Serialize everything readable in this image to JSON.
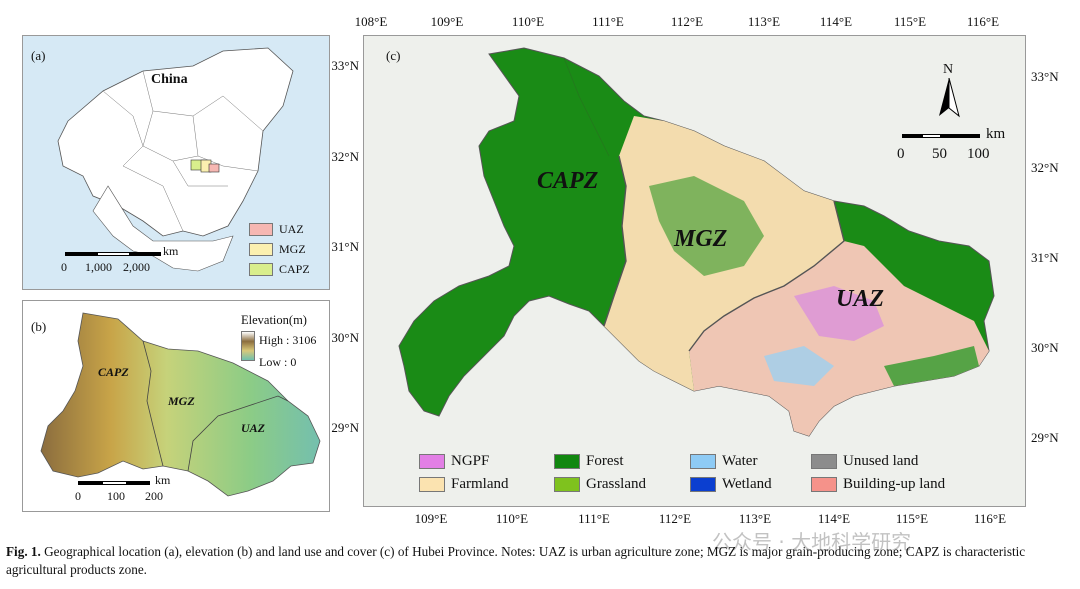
{
  "panel_a": {
    "label": "(a)",
    "country": "China",
    "legend": [
      {
        "name": "UAZ",
        "color": "#f6b7b2"
      },
      {
        "name": "MGZ",
        "color": "#fbf0b0"
      },
      {
        "name": "CAPZ",
        "color": "#d9ee8c"
      }
    ],
    "scale": {
      "unit": "km",
      "ticks": [
        "0",
        "1,000",
        "2,000"
      ]
    }
  },
  "panel_b": {
    "label": "(b)",
    "legend_title": "Elevation(m)",
    "high": "High : 3106",
    "low": "Low : 0",
    "zones": [
      "CAPZ",
      "MGZ",
      "UAZ"
    ],
    "scale": {
      "unit": "km",
      "ticks": [
        "0",
        "100",
        "200"
      ]
    }
  },
  "panel_c": {
    "label": "(c)",
    "zones": [
      "CAPZ",
      "MGZ",
      "UAZ"
    ],
    "north": "N",
    "scale": {
      "unit": "km",
      "ticks": [
        "0",
        "50",
        "100"
      ]
    },
    "lon_ticks": [
      "108°E",
      "109°E",
      "110°E",
      "111°E",
      "112°E",
      "113°E",
      "114°E",
      "115°E",
      "116°E"
    ],
    "lon_ticks_bottom": [
      "109°E",
      "110°E",
      "111°E",
      "112°E",
      "113°E",
      "114°E",
      "115°E",
      "116°E"
    ],
    "lat_ticks_left": [
      "33°N",
      "32°N",
      "31°N",
      "30°N",
      "29°N"
    ],
    "lat_ticks_right": [
      "33°N",
      "32°N",
      "31°N",
      "30°N",
      "29°N"
    ],
    "legend": [
      {
        "name": "NGPF",
        "color": "#e27fe5"
      },
      {
        "name": "Forest",
        "color": "#11870f"
      },
      {
        "name": "Water",
        "color": "#8ecbf5"
      },
      {
        "name": "Unused land",
        "color": "#8c8c8c"
      },
      {
        "name": "Farmland",
        "color": "#fbe3b0"
      },
      {
        "name": "Grassland",
        "color": "#7fc21e"
      },
      {
        "name": "Wetland",
        "color": "#0b3fd0"
      },
      {
        "name": "Building-up land",
        "color": "#f5928a"
      }
    ]
  },
  "watermark": "公众号 · 大地科学研究",
  "caption": {
    "lead": "Fig. 1.",
    "text": "Geographical location (a), elevation (b) and land use and cover (c) of Hubei Province. Notes: UAZ is urban agriculture zone; MGZ is major grain-producing zone; CAPZ is characteristic agricultural products zone."
  }
}
